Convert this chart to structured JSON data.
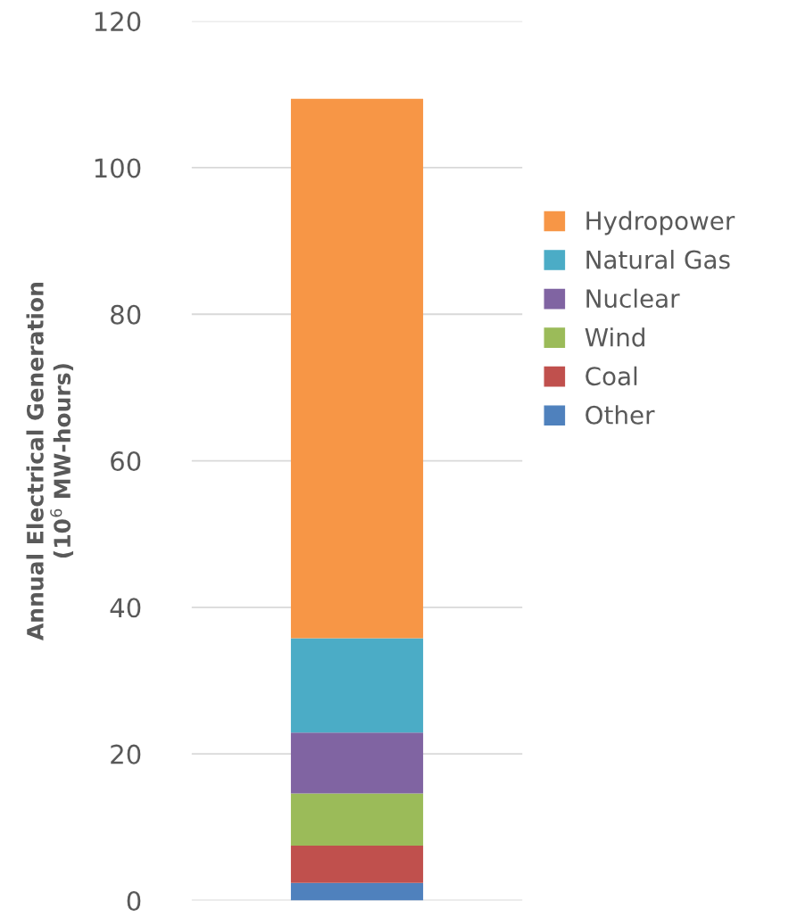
{
  "chart_data": {
    "type": "bar",
    "stacked": true,
    "categories": [
      null
    ],
    "ylabel": "Annual Electrical Generation\n(10$^{6}$ MW-hours)",
    "series": [
      {
        "name": "Other",
        "color": "#4f81bd",
        "values": [
          2.4
        ]
      },
      {
        "name": "Coal",
        "color": "#c0504d",
        "values": [
          5.1
        ]
      },
      {
        "name": "Wind",
        "color": "#9bbb59",
        "values": [
          7.1
        ]
      },
      {
        "name": "Nuclear",
        "color": "#8064a2",
        "values": [
          8.3
        ]
      },
      {
        "name": "Natural Gas",
        "color": "#4bacc6",
        "values": [
          12.9
        ]
      },
      {
        "name": "Hydropower",
        "color": "#f79646",
        "values": [
          73.6
        ]
      }
    ],
    "ylim": [
      0,
      120
    ],
    "yticks": [
      0,
      20,
      40,
      60,
      80,
      100,
      120
    ],
    "grid": "y",
    "legend": "right",
    "tick_labels": "y"
  }
}
